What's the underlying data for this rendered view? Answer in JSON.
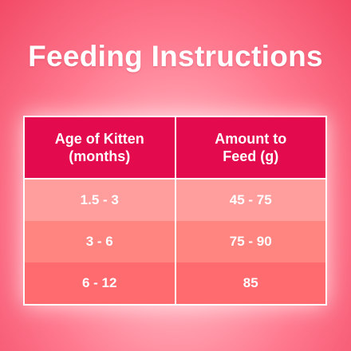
{
  "title": "Feeding Instructions",
  "table": {
    "headers": [
      "Age of Kitten\n(months)",
      "Amount to\nFeed (g)"
    ],
    "rows": [
      [
        "1.5 - 3",
        "45 - 75"
      ],
      [
        "3 - 6",
        "75 - 90"
      ],
      [
        "6 - 12",
        "85"
      ]
    ]
  },
  "colors": {
    "header_bg": "#e30b4d",
    "row_1_bg": "#ff9e9c",
    "row_2_bg": "#ff8581",
    "row_3_bg": "#ff6b6f",
    "background": "#ff7a8f",
    "text": "#ffffff"
  }
}
